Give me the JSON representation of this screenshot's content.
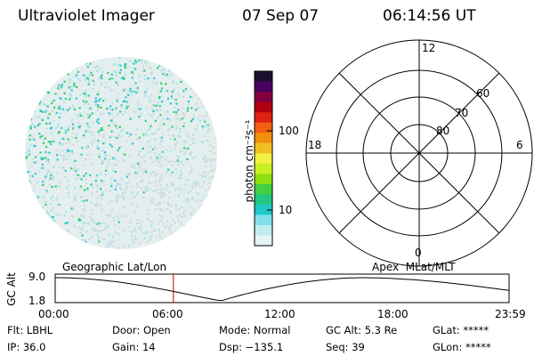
{
  "header": {
    "instrument": "Ultraviolet Imager",
    "date": "07 Sep 07",
    "time": "06:14:56 UT"
  },
  "colorbar": {
    "unit_label": "photon cm⁻²s⁻¹",
    "tick_labels": [
      "100",
      "10"
    ],
    "colors": [
      "#1a1030",
      "#4a0060",
      "#800040",
      "#b00010",
      "#e02010",
      "#f06010",
      "#f09010",
      "#f0c020",
      "#f0f040",
      "#c8f020",
      "#90e010",
      "#40d040",
      "#20c880",
      "#20c8c8",
      "#80e0e8",
      "#c0ecf0",
      "#e8f4f4"
    ]
  },
  "polar_plot": {
    "mlt_labels": {
      "top": "12",
      "right": "6",
      "bottom": "0",
      "left": "18"
    },
    "lat_labels": [
      "60",
      "70",
      "80"
    ]
  },
  "orbit_panel": {
    "left_title": "Geographic Lat/Lon",
    "right_title": "Apex  MLat/MLT",
    "axis_label": "GC Alt",
    "y_ticks": [
      "9.0",
      "1.8"
    ],
    "x_ticks": [
      "00:00",
      "06:00",
      "12:00",
      "18:00",
      "23:59"
    ],
    "current_time_marker_hours": 6.25
  },
  "info": {
    "row1": [
      "Flt: LBHL",
      "Door: Open",
      "Mode: Normal",
      "GC Alt: 5.3 Re",
      "GLat: *****"
    ],
    "row2": [
      "IP: 36.0",
      "Gain: 14",
      "Dsp: −135.1",
      "Seq: 39",
      "GLon: *****"
    ]
  },
  "colors": {
    "text": "#000000",
    "marker": "#c00000"
  }
}
